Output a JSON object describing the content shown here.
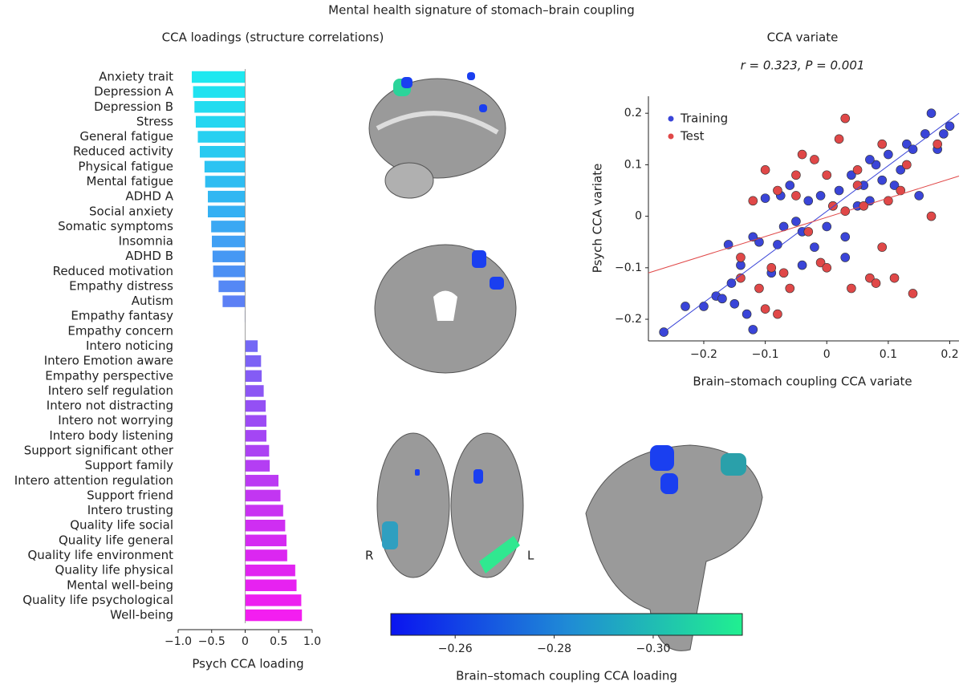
{
  "title": "Mental health signature of stomach–brain coupling",
  "brain_labels": {
    "right": "R",
    "left": "L"
  },
  "chart_data": [
    {
      "type": "bar",
      "orientation": "horizontal",
      "title": "CCA loadings (structure correlations)",
      "xlabel": "Psych CCA loading",
      "categories": [
        "Anxiety trait",
        "Depression A",
        "Depression B",
        "Stress",
        "General fatigue",
        "Reduced activity",
        "Physical fatigue",
        "Mental fatigue",
        "ADHD A",
        "Social anxiety",
        "Somatic symptoms",
        "Insomnia",
        "ADHD B",
        "Reduced motivation",
        "Empathy distress",
        "Autism",
        "Empathy fantasy",
        "Empathy concern",
        "Intero noticing",
        "Intero Emotion aware",
        "Empathy perspective",
        "Intero self regulation",
        "Intero not distracting",
        "Intero not worrying",
        "Intero body listening",
        "Support significant other",
        "Support family",
        "Intero attention regulation",
        "Support friend",
        "Intero trusting",
        "Quality life social",
        "Quality life general",
        "Quality life environment",
        "Quality life physical",
        "Mental well-being",
        "Quality life psychological",
        "Well-being"
      ],
      "values": [
        -0.8,
        -0.78,
        -0.76,
        -0.74,
        -0.71,
        -0.68,
        -0.61,
        -0.6,
        -0.56,
        -0.56,
        -0.51,
        -0.5,
        -0.49,
        -0.48,
        -0.4,
        -0.34,
        -0.01,
        0,
        0.19,
        0.24,
        0.25,
        0.28,
        0.31,
        0.32,
        0.32,
        0.36,
        0.37,
        0.5,
        0.53,
        0.57,
        0.6,
        0.62,
        0.63,
        0.75,
        0.77,
        0.84,
        0.85
      ],
      "colors": [
        "#1ee8f0",
        "#20e2f0",
        "#22dcf0",
        "#24d6f1",
        "#27d0f1",
        "#29caf1",
        "#2cc3f2",
        "#2ebdf2",
        "#31b7f2",
        "#34b0f3",
        "#3aa8f3",
        "#40a0f4",
        "#4698f4",
        "#4c90f4",
        "#5588f5",
        "#5c80f5",
        "#6478f5",
        "#6c70f5",
        "#7468f5",
        "#7c62f5",
        "#845cf5",
        "#8c56f4",
        "#9450f4",
        "#9c4bf4",
        "#a446f4",
        "#ac42f3",
        "#b43ef3",
        "#bb3af3",
        "#c236f2",
        "#c932f2",
        "#cf2ef2",
        "#d52af2",
        "#db27f1",
        "#e124f1",
        "#e722f1",
        "#ed20f0",
        "#f31ef0"
      ],
      "xlim": [
        -1,
        1
      ],
      "xticks": [
        {
          "value": -1,
          "label": "−1.0"
        },
        {
          "value": -0.5,
          "label": "−0.5"
        },
        0,
        0.5,
        {
          "value": 1,
          "label": "1.0"
        }
      ]
    },
    {
      "type": "scatter",
      "title": "CCA variate",
      "annotation": "r = 0.323, P = 0.001",
      "xlabel": "Brain–stomach coupling CCA variate",
      "ylabel": "Psych CCA variate",
      "legend": "upper left",
      "xlim": [
        -0.29,
        0.215
      ],
      "ylim": [
        -0.242,
        0.233
      ],
      "xticks": [
        {
          "value": -0.2,
          "label": "−0.2"
        },
        {
          "value": -0.1,
          "label": "−0.1"
        },
        0,
        0.1,
        0.2
      ],
      "yticks": [
        {
          "value": -0.2,
          "label": "−0.2"
        },
        {
          "value": -0.1,
          "label": "−0.1"
        },
        0,
        0.1,
        0.2
      ],
      "series": [
        {
          "name": "Training",
          "color": "#3a45d8",
          "x": [
            -0.265,
            -0.23,
            -0.2,
            -0.18,
            -0.17,
            -0.16,
            -0.155,
            -0.15,
            -0.14,
            -0.13,
            -0.12,
            -0.11,
            -0.1,
            -0.09,
            -0.08,
            -0.075,
            -0.07,
            -0.06,
            -0.05,
            -0.04,
            -0.03,
            -0.02,
            -0.01,
            0,
            0.01,
            0.02,
            0.03,
            0.04,
            0.05,
            0.06,
            0.07,
            0.08,
            0.09,
            0.1,
            0.11,
            0.12,
            0.13,
            0.14,
            0.15,
            0.16,
            0.17,
            0.18,
            0.19,
            0.2,
            -0.04,
            0.03,
            -0.12,
            0.07
          ],
          "values": [
            -0.225,
            -0.175,
            -0.175,
            -0.155,
            -0.16,
            -0.055,
            -0.13,
            -0.17,
            -0.095,
            -0.19,
            -0.22,
            -0.05,
            0.035,
            -0.11,
            -0.055,
            0.04,
            -0.02,
            0.06,
            -0.01,
            -0.03,
            0.03,
            -0.06,
            0.04,
            -0.02,
            0.02,
            0.05,
            -0.04,
            0.08,
            0.02,
            0.06,
            0.03,
            0.1,
            0.07,
            0.12,
            0.06,
            0.09,
            0.14,
            0.13,
            0.04,
            0.16,
            0.2,
            0.13,
            0.16,
            0.175,
            -0.095,
            -0.08,
            -0.04,
            0.11
          ],
          "fit": {
            "x": [
              -0.265,
              0.215
            ],
            "y": [
              -0.225,
              0.2
            ]
          }
        },
        {
          "name": "Test",
          "color": "#e04848",
          "x": [
            -0.14,
            -0.14,
            -0.12,
            -0.11,
            -0.1,
            -0.09,
            -0.08,
            -0.07,
            -0.06,
            -0.05,
            -0.04,
            -0.03,
            -0.02,
            -0.01,
            0,
            0.01,
            0.02,
            0.03,
            0.04,
            0.05,
            0.06,
            0.07,
            0.08,
            0.09,
            0.1,
            0.11,
            0.12,
            0.14,
            0.17,
            0.18,
            -0.1,
            -0.05,
            0,
            0.03,
            0.05,
            0.09,
            -0.08,
            0.13
          ],
          "values": [
            -0.08,
            -0.12,
            0.03,
            -0.14,
            0.09,
            -0.1,
            0.05,
            -0.11,
            -0.14,
            0.08,
            0.12,
            -0.03,
            0.11,
            -0.09,
            0.08,
            0.02,
            0.15,
            0.19,
            -0.14,
            0.09,
            0.02,
            -0.12,
            -0.13,
            0.14,
            0.03,
            -0.12,
            0.05,
            -0.15,
            0,
            0.14,
            -0.18,
            0.04,
            -0.1,
            0.01,
            0.06,
            -0.06,
            -0.19,
            0.1
          ],
          "fit": {
            "x": [
              -0.29,
              0.215
            ],
            "y": [
              -0.11,
              0.078
            ]
          }
        }
      ]
    },
    {
      "type": "colorbar",
      "xlabel": "Brain–stomach coupling CCA loading",
      "xlim": [
        -0.247,
        -0.318
      ],
      "colors": [
        "#0a14f0",
        "#1f8ad6",
        "#20f090"
      ],
      "xticks": [
        {
          "value": -0.26,
          "label": "−0.26"
        },
        {
          "value": -0.28,
          "label": "−0.28"
        },
        {
          "value": -0.3,
          "label": "−0.30"
        }
      ]
    }
  ]
}
